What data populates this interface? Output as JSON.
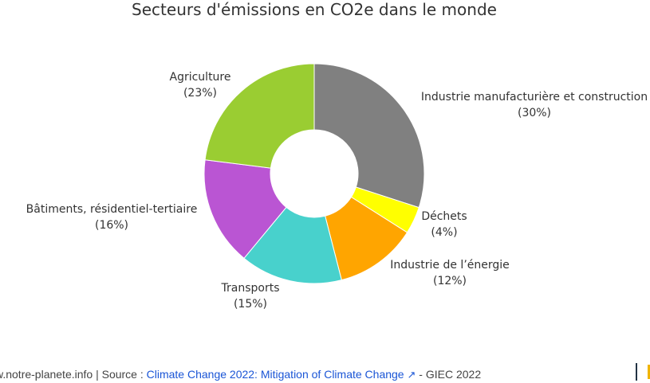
{
  "chart_data": {
    "type": "pie",
    "donut": true,
    "title": "Secteurs d'émissions en CO2e dans le monde",
    "slices": [
      {
        "label": "Industrie manufacturière et construction",
        "value": 30,
        "pct_label": "(30%)",
        "color": "#808080"
      },
      {
        "label": "Déchets",
        "value": 4,
        "pct_label": "(4%)",
        "color": "#ffff00"
      },
      {
        "label": "Industrie de l’énergie",
        "value": 12,
        "pct_label": "(12%)",
        "color": "#ffa500"
      },
      {
        "label": "Transports",
        "value": 15,
        "pct_label": "(15%)",
        "color": "#48d1cc"
      },
      {
        "label": "Bâtiments, résidentiel-tertiaire",
        "value": 16,
        "pct_label": "(16%)",
        "color": "#ba55d3"
      },
      {
        "label": "Agriculture",
        "value": 23,
        "pct_label": "(23%)",
        "color": "#9acd32"
      }
    ]
  },
  "footer": {
    "prefix": "w.notre-planete.info | Source : ",
    "link": "Climate Change 2022: Mitigation of Climate Change",
    "suffix": " - GIEC 2022"
  }
}
